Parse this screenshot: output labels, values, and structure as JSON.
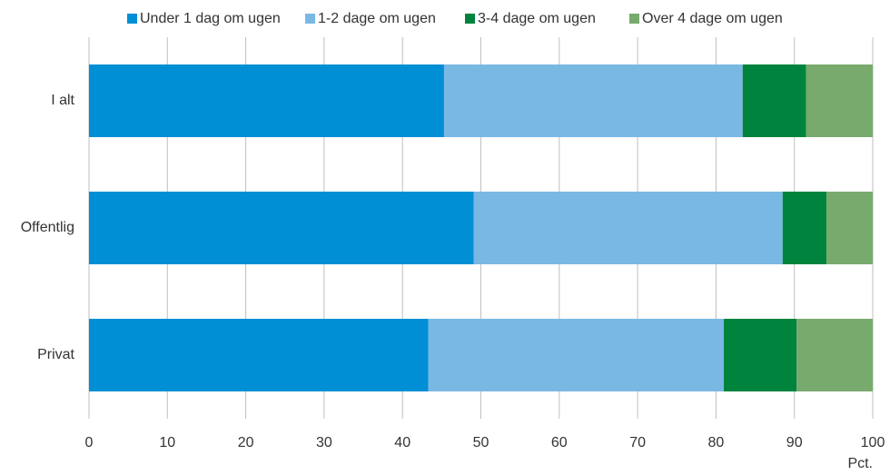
{
  "chart_data": {
    "type": "stacked_bar_horizontal",
    "categories": [
      "I alt",
      "Offentlig",
      "Privat"
    ],
    "series": [
      {
        "name": "Under 1 dag om ugen",
        "color": "#008fd5",
        "values": [
          45.3,
          49.1,
          43.3
        ]
      },
      {
        "name": "1-2 dage om ugen",
        "color": "#7ab8e4",
        "values": [
          38.1,
          39.4,
          37.7
        ]
      },
      {
        "name": "3-4 dage om ugen",
        "color": "#00843d",
        "values": [
          8.1,
          5.6,
          9.3
        ]
      },
      {
        "name": "Over 4 dage om ugen",
        "color": "#78aa6e",
        "values": [
          8.5,
          5.9,
          9.7
        ]
      }
    ],
    "xlim": [
      0,
      100
    ],
    "xticks": [
      0,
      10,
      20,
      30,
      40,
      50,
      60,
      70,
      80,
      90,
      100
    ],
    "x_label": "Pct.",
    "grid": true,
    "legend": "top"
  }
}
